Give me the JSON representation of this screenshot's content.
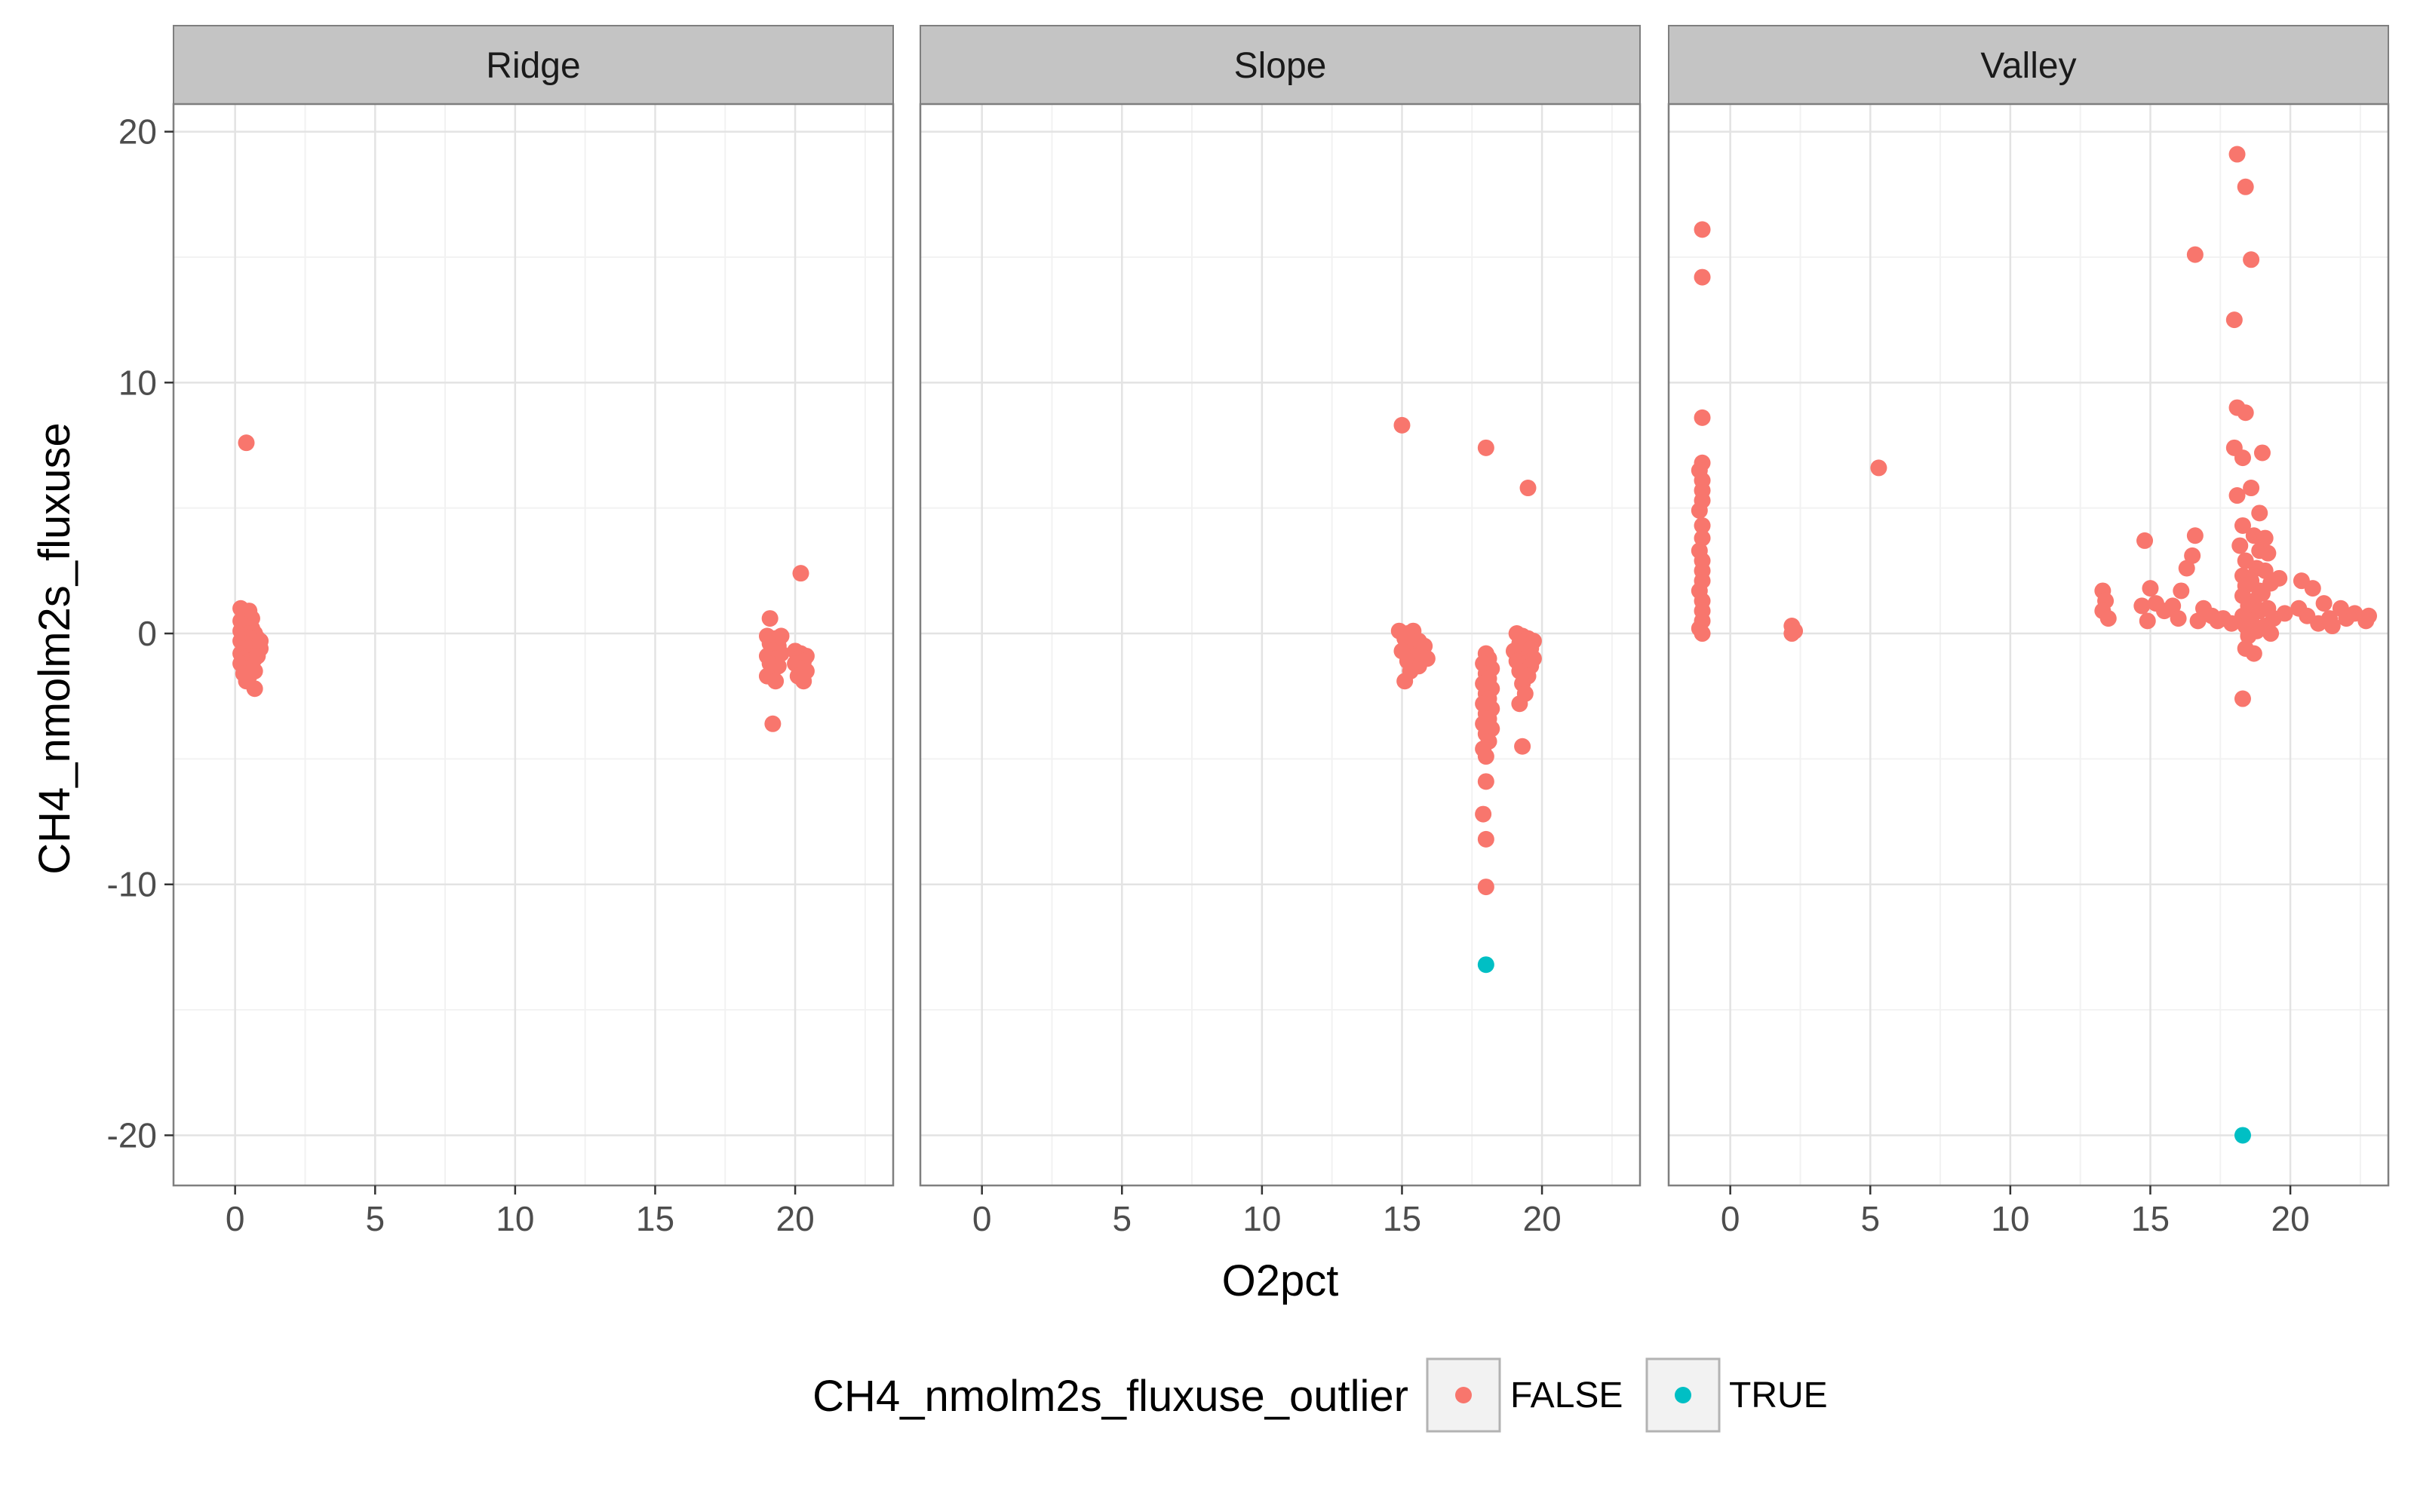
{
  "chart_data": {
    "type": "scatter",
    "xlabel": "O2pct",
    "ylabel": "CH4_nmolm2s_fluxuse",
    "xlim": [
      -2.2,
      23.5
    ],
    "ylim": [
      -22,
      21.1
    ],
    "x_ticks": [
      0,
      5,
      10,
      15,
      20
    ],
    "y_ticks": [
      -20,
      -10,
      0,
      10,
      20
    ],
    "grid": true,
    "legend": {
      "title": "CH4_nmolm2s_fluxuse_outlier",
      "position": "bottom",
      "entries": [
        {
          "label": "FALSE",
          "color": "#F8766D"
        },
        {
          "label": "TRUE",
          "color": "#00BFC4"
        }
      ]
    },
    "panels": [
      {
        "label": "Ridge",
        "series": [
          {
            "name": "FALSE",
            "points": [
              [
                0.4,
                7.6
              ],
              [
                0.2,
                1.0
              ],
              [
                0.3,
                0.8
              ],
              [
                0.5,
                0.9
              ],
              [
                0.4,
                0.7
              ],
              [
                0.6,
                0.6
              ],
              [
                0.2,
                0.5
              ],
              [
                0.5,
                0.4
              ],
              [
                0.3,
                0.3
              ],
              [
                0.6,
                0.2
              ],
              [
                0.2,
                0.1
              ],
              [
                0.4,
                0.0
              ],
              [
                0.7,
                0.0
              ],
              [
                0.3,
                -0.1
              ],
              [
                0.5,
                -0.2
              ],
              [
                0.8,
                -0.2
              ],
              [
                0.2,
                -0.3
              ],
              [
                0.6,
                -0.3
              ],
              [
                0.4,
                -0.4
              ],
              [
                0.7,
                -0.5
              ],
              [
                0.3,
                -0.6
              ],
              [
                0.5,
                -0.6
              ],
              [
                0.8,
                -0.7
              ],
              [
                0.2,
                -0.8
              ],
              [
                0.6,
                -0.8
              ],
              [
                0.4,
                -0.9
              ],
              [
                0.7,
                -1.0
              ],
              [
                0.3,
                -1.0
              ],
              [
                0.5,
                -1.1
              ],
              [
                0.2,
                -1.2
              ],
              [
                0.6,
                -1.3
              ],
              [
                0.4,
                -1.4
              ],
              [
                0.3,
                -1.6
              ],
              [
                0.5,
                -1.7
              ],
              [
                0.4,
                -1.9
              ],
              [
                0.7,
                -2.2
              ],
              [
                0.8,
                -0.9
              ],
              [
                0.9,
                -0.6
              ],
              [
                0.9,
                -0.3
              ],
              [
                0.7,
                -1.5
              ],
              [
                19.1,
                0.6
              ],
              [
                20.2,
                2.4
              ],
              [
                19.0,
                -0.1
              ],
              [
                19.3,
                -0.2
              ],
              [
                19.5,
                -0.1
              ],
              [
                19.1,
                -0.4
              ],
              [
                19.4,
                -0.5
              ],
              [
                19.2,
                -0.7
              ],
              [
                19.5,
                -0.8
              ],
              [
                19.0,
                -0.9
              ],
              [
                19.3,
                -1.0
              ],
              [
                19.1,
                -1.2
              ],
              [
                19.4,
                -1.3
              ],
              [
                19.2,
                -1.5
              ],
              [
                19.0,
                -1.7
              ],
              [
                19.3,
                -1.9
              ],
              [
                19.2,
                -3.6
              ],
              [
                20.0,
                -0.7
              ],
              [
                20.2,
                -0.8
              ],
              [
                20.4,
                -0.9
              ],
              [
                20.1,
                -1.0
              ],
              [
                20.3,
                -1.1
              ],
              [
                20.0,
                -1.2
              ],
              [
                20.2,
                -1.4
              ],
              [
                20.4,
                -1.5
              ],
              [
                20.1,
                -1.7
              ],
              [
                20.3,
                -1.9
              ]
            ]
          }
        ]
      },
      {
        "label": "Slope",
        "series": [
          {
            "name": "FALSE",
            "points": [
              [
                15.0,
                8.3
              ],
              [
                18.0,
                7.4
              ],
              [
                19.5,
                5.8
              ],
              [
                14.9,
                0.1
              ],
              [
                15.2,
                0.0
              ],
              [
                15.4,
                0.1
              ],
              [
                15.1,
                -0.2
              ],
              [
                15.6,
                -0.3
              ],
              [
                15.3,
                -0.4
              ],
              [
                15.7,
                -0.6
              ],
              [
                15.0,
                -0.7
              ],
              [
                15.5,
                -0.9
              ],
              [
                15.2,
                -1.1
              ],
              [
                15.6,
                -1.3
              ],
              [
                15.3,
                -1.5
              ],
              [
                15.1,
                -1.9
              ],
              [
                15.8,
                -0.5
              ],
              [
                15.9,
                -1.0
              ],
              [
                18.0,
                -0.8
              ],
              [
                18.1,
                -1.0
              ],
              [
                17.9,
                -1.2
              ],
              [
                18.2,
                -1.4
              ],
              [
                18.0,
                -1.6
              ],
              [
                18.1,
                -1.8
              ],
              [
                17.9,
                -2.0
              ],
              [
                18.2,
                -2.2
              ],
              [
                18.0,
                -2.4
              ],
              [
                18.1,
                -2.6
              ],
              [
                17.9,
                -2.8
              ],
              [
                18.2,
                -3.0
              ],
              [
                18.0,
                -3.2
              ],
              [
                18.1,
                -3.4
              ],
              [
                17.9,
                -3.6
              ],
              [
                18.2,
                -3.8
              ],
              [
                18.0,
                -4.0
              ],
              [
                18.1,
                -4.3
              ],
              [
                17.9,
                -4.6
              ],
              [
                18.0,
                -4.9
              ],
              [
                18.0,
                -5.9
              ],
              [
                17.9,
                -7.2
              ],
              [
                18.0,
                -8.2
              ],
              [
                18.0,
                -10.1
              ],
              [
                19.1,
                0.0
              ],
              [
                19.3,
                -0.1
              ],
              [
                19.5,
                -0.2
              ],
              [
                19.7,
                -0.3
              ],
              [
                19.2,
                -0.4
              ],
              [
                19.4,
                -0.5
              ],
              [
                19.6,
                -0.6
              ],
              [
                19.0,
                -0.7
              ],
              [
                19.3,
                -0.8
              ],
              [
                19.5,
                -0.9
              ],
              [
                19.7,
                -1.0
              ],
              [
                19.1,
                -1.1
              ],
              [
                19.4,
                -1.2
              ],
              [
                19.6,
                -1.3
              ],
              [
                19.2,
                -1.5
              ],
              [
                19.5,
                -1.7
              ],
              [
                19.3,
                -2.0
              ],
              [
                19.4,
                -2.4
              ],
              [
                19.2,
                -2.8
              ],
              [
                19.3,
                -4.5
              ]
            ]
          },
          {
            "name": "TRUE",
            "points": [
              [
                18.0,
                -13.2
              ]
            ]
          }
        ]
      },
      {
        "label": "Valley",
        "series": [
          {
            "name": "FALSE",
            "points": [
              [
                -1.0,
                16.1
              ],
              [
                -1.0,
                14.2
              ],
              [
                -1.0,
                8.6
              ],
              [
                -1.0,
                6.8
              ],
              [
                -1.1,
                6.5
              ],
              [
                -1.0,
                6.1
              ],
              [
                -1.0,
                5.7
              ],
              [
                -1.0,
                5.3
              ],
              [
                -1.1,
                4.9
              ],
              [
                -1.0,
                4.3
              ],
              [
                -1.0,
                3.8
              ],
              [
                -1.1,
                3.3
              ],
              [
                -1.0,
                2.9
              ],
              [
                -1.0,
                2.5
              ],
              [
                -1.0,
                2.1
              ],
              [
                -1.1,
                1.7
              ],
              [
                -1.0,
                1.3
              ],
              [
                -1.0,
                0.9
              ],
              [
                -1.0,
                0.5
              ],
              [
                -1.1,
                0.2
              ],
              [
                -1.0,
                0.0
              ],
              [
                2.2,
                0.3
              ],
              [
                2.3,
                0.1
              ],
              [
                2.2,
                0.0
              ],
              [
                5.3,
                6.6
              ],
              [
                13.3,
                1.7
              ],
              [
                13.4,
                1.3
              ],
              [
                13.3,
                0.9
              ],
              [
                13.5,
                0.6
              ],
              [
                14.8,
                3.7
              ],
              [
                14.7,
                1.1
              ],
              [
                14.9,
                0.5
              ],
              [
                15.0,
                1.8
              ],
              [
                15.2,
                1.2
              ],
              [
                15.5,
                0.9
              ],
              [
                15.8,
                1.1
              ],
              [
                16.0,
                0.6
              ],
              [
                16.1,
                1.7
              ],
              [
                16.3,
                2.6
              ],
              [
                16.5,
                3.1
              ],
              [
                16.6,
                3.9
              ],
              [
                16.7,
                0.5
              ],
              [
                16.9,
                1.0
              ],
              [
                17.2,
                0.7
              ],
              [
                17.4,
                0.5
              ],
              [
                17.6,
                0.6
              ],
              [
                17.9,
                0.4
              ],
              [
                16.6,
                15.1
              ],
              [
                18.1,
                19.1
              ],
              [
                18.4,
                17.8
              ],
              [
                18.6,
                14.9
              ],
              [
                18.0,
                12.5
              ],
              [
                18.1,
                9.0
              ],
              [
                18.4,
                8.8
              ],
              [
                18.0,
                7.4
              ],
              [
                18.3,
                7.0
              ],
              [
                18.6,
                5.8
              ],
              [
                18.1,
                5.5
              ],
              [
                18.9,
                4.8
              ],
              [
                18.3,
                4.3
              ],
              [
                18.7,
                3.9
              ],
              [
                18.2,
                3.5
              ],
              [
                18.9,
                3.3
              ],
              [
                18.4,
                2.9
              ],
              [
                18.8,
                2.6
              ],
              [
                18.3,
                2.3
              ],
              [
                18.6,
                2.1
              ],
              [
                18.4,
                1.9
              ],
              [
                18.9,
                1.7
              ],
              [
                18.3,
                1.5
              ],
              [
                18.7,
                1.3
              ],
              [
                18.5,
                1.1
              ],
              [
                18.9,
                0.9
              ],
              [
                18.3,
                0.7
              ],
              [
                18.6,
                0.5
              ],
              [
                18.4,
                0.3
              ],
              [
                18.8,
                0.1
              ],
              [
                18.5,
                -0.1
              ],
              [
                18.4,
                -0.6
              ],
              [
                18.7,
                -0.8
              ],
              [
                18.3,
                -2.6
              ],
              [
                19.0,
                7.2
              ],
              [
                19.1,
                3.8
              ],
              [
                19.2,
                3.2
              ],
              [
                19.1,
                2.5
              ],
              [
                19.3,
                2.0
              ],
              [
                19.0,
                1.6
              ],
              [
                19.2,
                1.0
              ],
              [
                19.4,
                0.6
              ],
              [
                19.1,
                0.3
              ],
              [
                19.3,
                0.0
              ],
              [
                19.6,
                2.2
              ],
              [
                19.8,
                0.8
              ],
              [
                20.3,
                1.0
              ],
              [
                20.4,
                2.1
              ],
              [
                20.6,
                0.7
              ],
              [
                20.8,
                1.8
              ],
              [
                21.0,
                0.4
              ],
              [
                21.2,
                1.2
              ],
              [
                21.4,
                0.6
              ],
              [
                21.5,
                0.3
              ],
              [
                21.8,
                1.0
              ],
              [
                22.0,
                0.6
              ],
              [
                22.3,
                0.8
              ],
              [
                22.7,
                0.5
              ],
              [
                22.8,
                0.7
              ]
            ]
          },
          {
            "name": "TRUE",
            "points": [
              [
                18.3,
                -20.0
              ]
            ]
          }
        ]
      }
    ]
  }
}
